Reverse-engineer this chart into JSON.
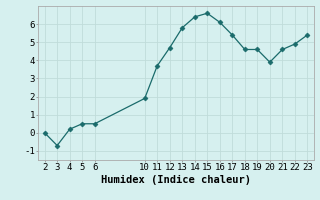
{
  "x": [
    2,
    3,
    4,
    5,
    6,
    10,
    11,
    12,
    13,
    14,
    15,
    16,
    17,
    18,
    19,
    20,
    21,
    22,
    23
  ],
  "y": [
    0.0,
    -0.7,
    0.2,
    0.5,
    0.5,
    1.9,
    3.7,
    4.7,
    5.8,
    6.4,
    6.6,
    6.1,
    5.4,
    4.6,
    4.6,
    3.9,
    4.6,
    4.9,
    5.4
  ],
  "line_color": "#1a6b6b",
  "marker": "D",
  "marker_size": 2.5,
  "bg_color": "#d6f0ef",
  "grid_color": "#c0dcda",
  "xlabel": "Humidex (Indice chaleur)",
  "xlabel_fontsize": 7.5,
  "ylabel_ticks": [
    -1,
    0,
    1,
    2,
    3,
    4,
    5,
    6
  ],
  "xticks": [
    2,
    3,
    4,
    5,
    6,
    10,
    11,
    12,
    13,
    14,
    15,
    16,
    17,
    18,
    19,
    20,
    21,
    22,
    23
  ],
  "ylim": [
    -1.5,
    7.0
  ],
  "xlim": [
    1.5,
    23.5
  ],
  "tick_fontsize": 6.5
}
